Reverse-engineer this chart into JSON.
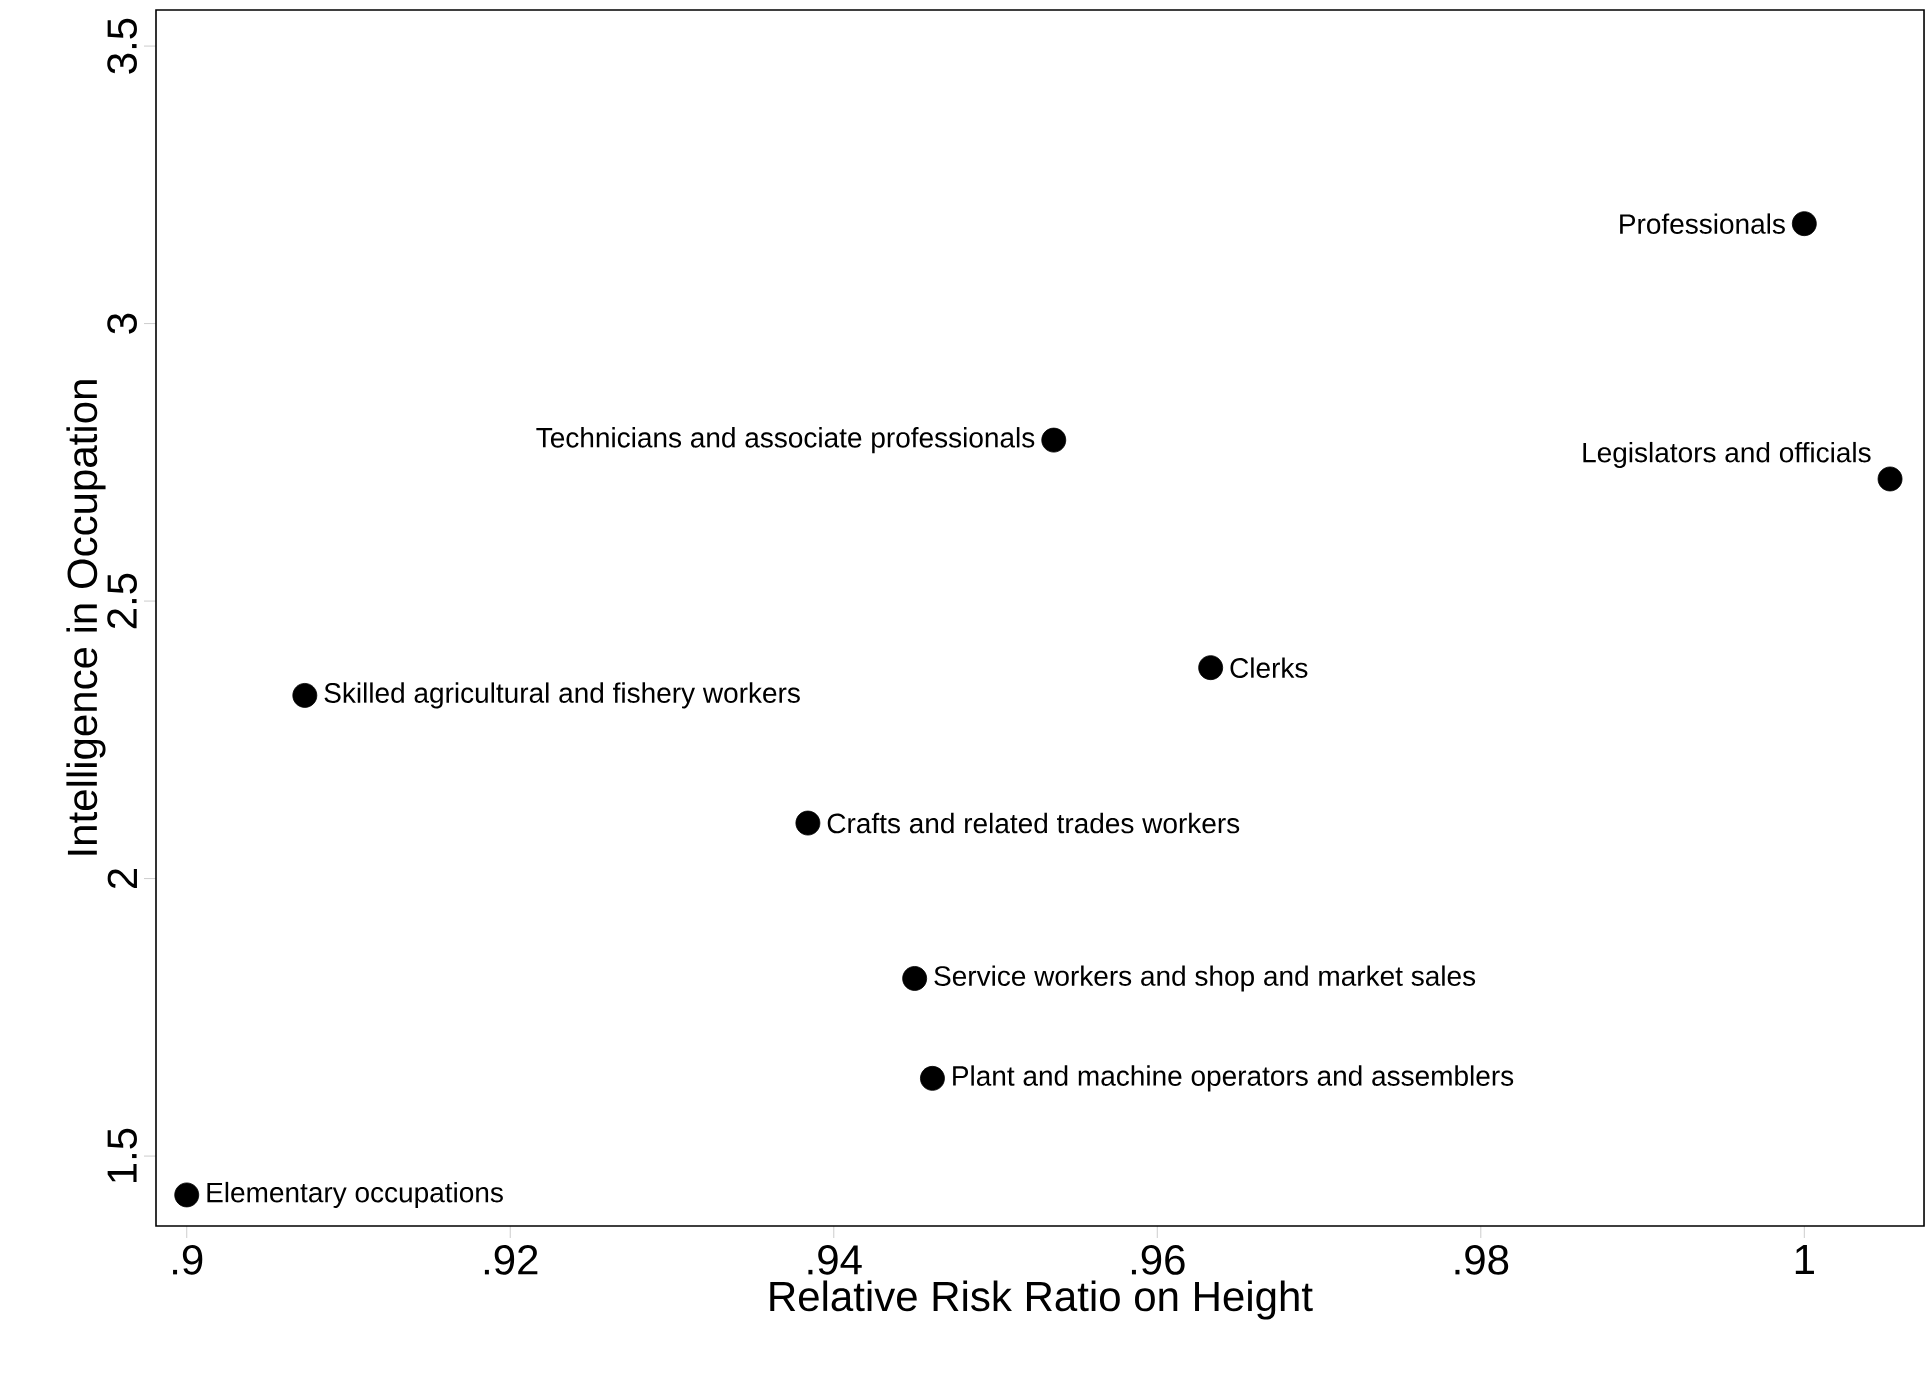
{
  "chart_data": {
    "type": "scatter",
    "xlabel": "Relative Risk Ratio on Height",
    "ylabel": "Intelligence in Occupation",
    "x": [
      1.0,
      1.0053,
      0.9536,
      0.9633,
      0.9073,
      0.9384,
      0.945,
      0.9461,
      0.9
    ],
    "values": [
      3.18,
      2.72,
      2.79,
      2.38,
      2.33,
      2.1,
      1.82,
      1.64,
      1.43
    ],
    "color": "#000000",
    "grid": false,
    "xlim": [
      0.8981,
      1.0074
    ],
    "ylim": [
      1.374,
      3.565
    ],
    "xticks": [
      {
        "value": 0.9,
        "label": ".9"
      },
      {
        "value": 0.92,
        "label": ".92"
      },
      {
        "value": 0.94,
        "label": ".94"
      },
      {
        "value": 0.96,
        "label": ".96"
      },
      {
        "value": 0.98,
        "label": ".98"
      },
      {
        "value": 1,
        "label": "1"
      }
    ],
    "yticks": [
      1.5,
      2,
      2.5,
      3,
      3.5
    ],
    "annotations": [
      {
        "text": "Professionals",
        "x": 1.0,
        "y": 3.18
      },
      {
        "text": "Legislators and officials",
        "x": 1.0053,
        "y": 2.72
      },
      {
        "text": "Technicians and associate professionals",
        "x": 0.9536,
        "y": 2.79
      },
      {
        "text": "Clerks",
        "x": 0.9633,
        "y": 2.38
      },
      {
        "text": "Skilled agricultural and fishery workers",
        "x": 0.9073,
        "y": 2.33
      },
      {
        "text": "Crafts and related trades workers",
        "x": 0.9384,
        "y": 2.1
      },
      {
        "text": "Service workers and shop and market sales",
        "x": 0.945,
        "y": 1.82
      },
      {
        "text": "Plant and machine operators and assemblers",
        "x": 0.9461,
        "y": 1.64
      },
      {
        "text": "Elementary occupations",
        "x": 0.9,
        "y": 1.43
      }
    ]
  }
}
